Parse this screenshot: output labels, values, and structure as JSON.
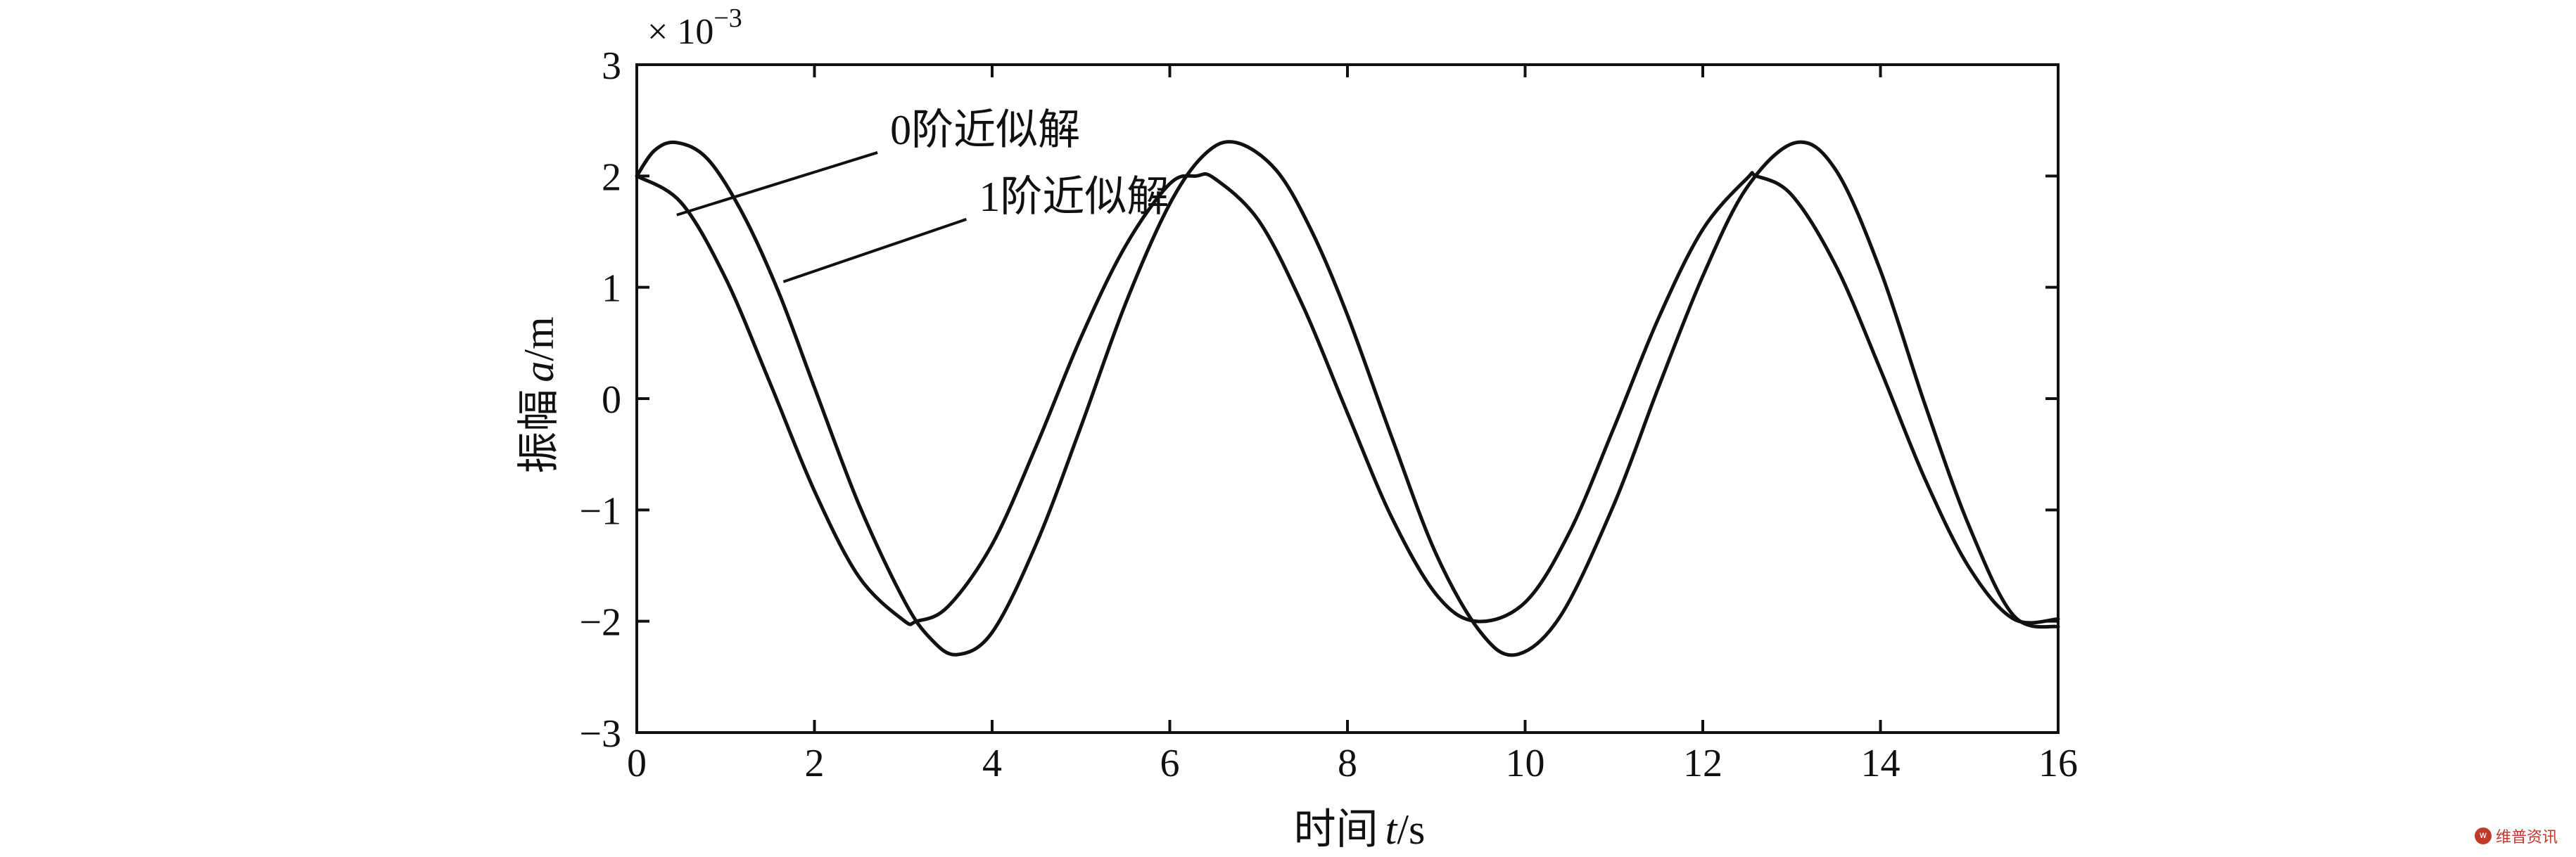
{
  "chart_data": {
    "type": "line",
    "xlabel_prefix": "时间",
    "xlabel_var": "t",
    "xlabel_unit": "/s",
    "ylabel_prefix": "振幅",
    "ylabel_var": "a",
    "ylabel_unit": "/m",
    "y_exponent_label": "× 10",
    "y_exponent_power": "−3",
    "xlim": [
      0,
      16
    ],
    "ylim": [
      -3,
      3
    ],
    "xticks": [
      0,
      2,
      4,
      6,
      8,
      10,
      12,
      14,
      16
    ],
    "yticks": [
      -3,
      -2,
      -1,
      0,
      1,
      2,
      3
    ],
    "xtick_labels": [
      "0",
      "2",
      "4",
      "6",
      "8",
      "10",
      "12",
      "14",
      "16"
    ],
    "ytick_labels": [
      "−3",
      "−2",
      "−1",
      "0",
      "1",
      "2",
      "3"
    ],
    "grid": false,
    "series": [
      {
        "name": "0阶近似解",
        "x": [
          0,
          0.5,
          1,
          1.5,
          2,
          2.5,
          3,
          3.15,
          3.5,
          4,
          4.5,
          5,
          5.5,
          6,
          6.3,
          6.5,
          7,
          7.5,
          8,
          8.5,
          9,
          9.45,
          10,
          10.5,
          11,
          11.5,
          12,
          12.5,
          12.6,
          13,
          13.5,
          14,
          14.5,
          15,
          15.5,
          16
        ],
        "y": [
          2.0,
          1.76,
          1.08,
          0.14,
          -0.83,
          -1.6,
          -1.99,
          -2.0,
          -1.87,
          -1.31,
          -0.42,
          0.55,
          1.37,
          1.93,
          2.0,
          1.98,
          1.6,
          0.83,
          -0.13,
          -1.07,
          -1.76,
          -2.0,
          -1.83,
          -1.2,
          -0.26,
          0.72,
          1.52,
          1.98,
          2.0,
          1.83,
          1.19,
          0.26,
          -0.72,
          -1.52,
          -1.98,
          -1.98
        ]
      },
      {
        "name": "1阶近似解",
        "x": [
          0,
          0.2,
          0.45,
          0.8,
          1.2,
          1.6,
          2,
          2.5,
          3,
          3.3,
          3.6,
          4,
          4.5,
          5,
          5.5,
          6,
          6.4,
          6.75,
          7.2,
          7.6,
          8,
          8.5,
          9,
          9.5,
          9.9,
          10.4,
          11,
          11.5,
          12,
          12.5,
          13.05,
          13.5,
          14,
          14.5,
          15,
          15.5,
          16
        ],
        "y": [
          2.0,
          2.23,
          2.3,
          2.15,
          1.65,
          0.95,
          0.1,
          -0.95,
          -1.8,
          -2.15,
          -2.3,
          -2.1,
          -1.3,
          -0.25,
          0.85,
          1.75,
          2.2,
          2.3,
          2.05,
          1.5,
          0.75,
          -0.35,
          -1.4,
          -2.1,
          -2.3,
          -1.95,
          -0.95,
          0.1,
          1.1,
          1.9,
          2.3,
          2.05,
          1.15,
          -0.05,
          -1.15,
          -1.95,
          -2.05
        ]
      }
    ],
    "annotations": [
      {
        "text": "0阶近似解",
        "series": 0,
        "x": 0.45,
        "y": 1.65,
        "text_x": 2.9,
        "text_y": 2.35
      },
      {
        "text": "1阶近似解",
        "series": 1,
        "x": 1.65,
        "y": 1.05,
        "text_x": 3.9,
        "text_y": 1.75
      }
    ]
  },
  "watermark": {
    "badge": "w",
    "text": "维普资讯"
  }
}
